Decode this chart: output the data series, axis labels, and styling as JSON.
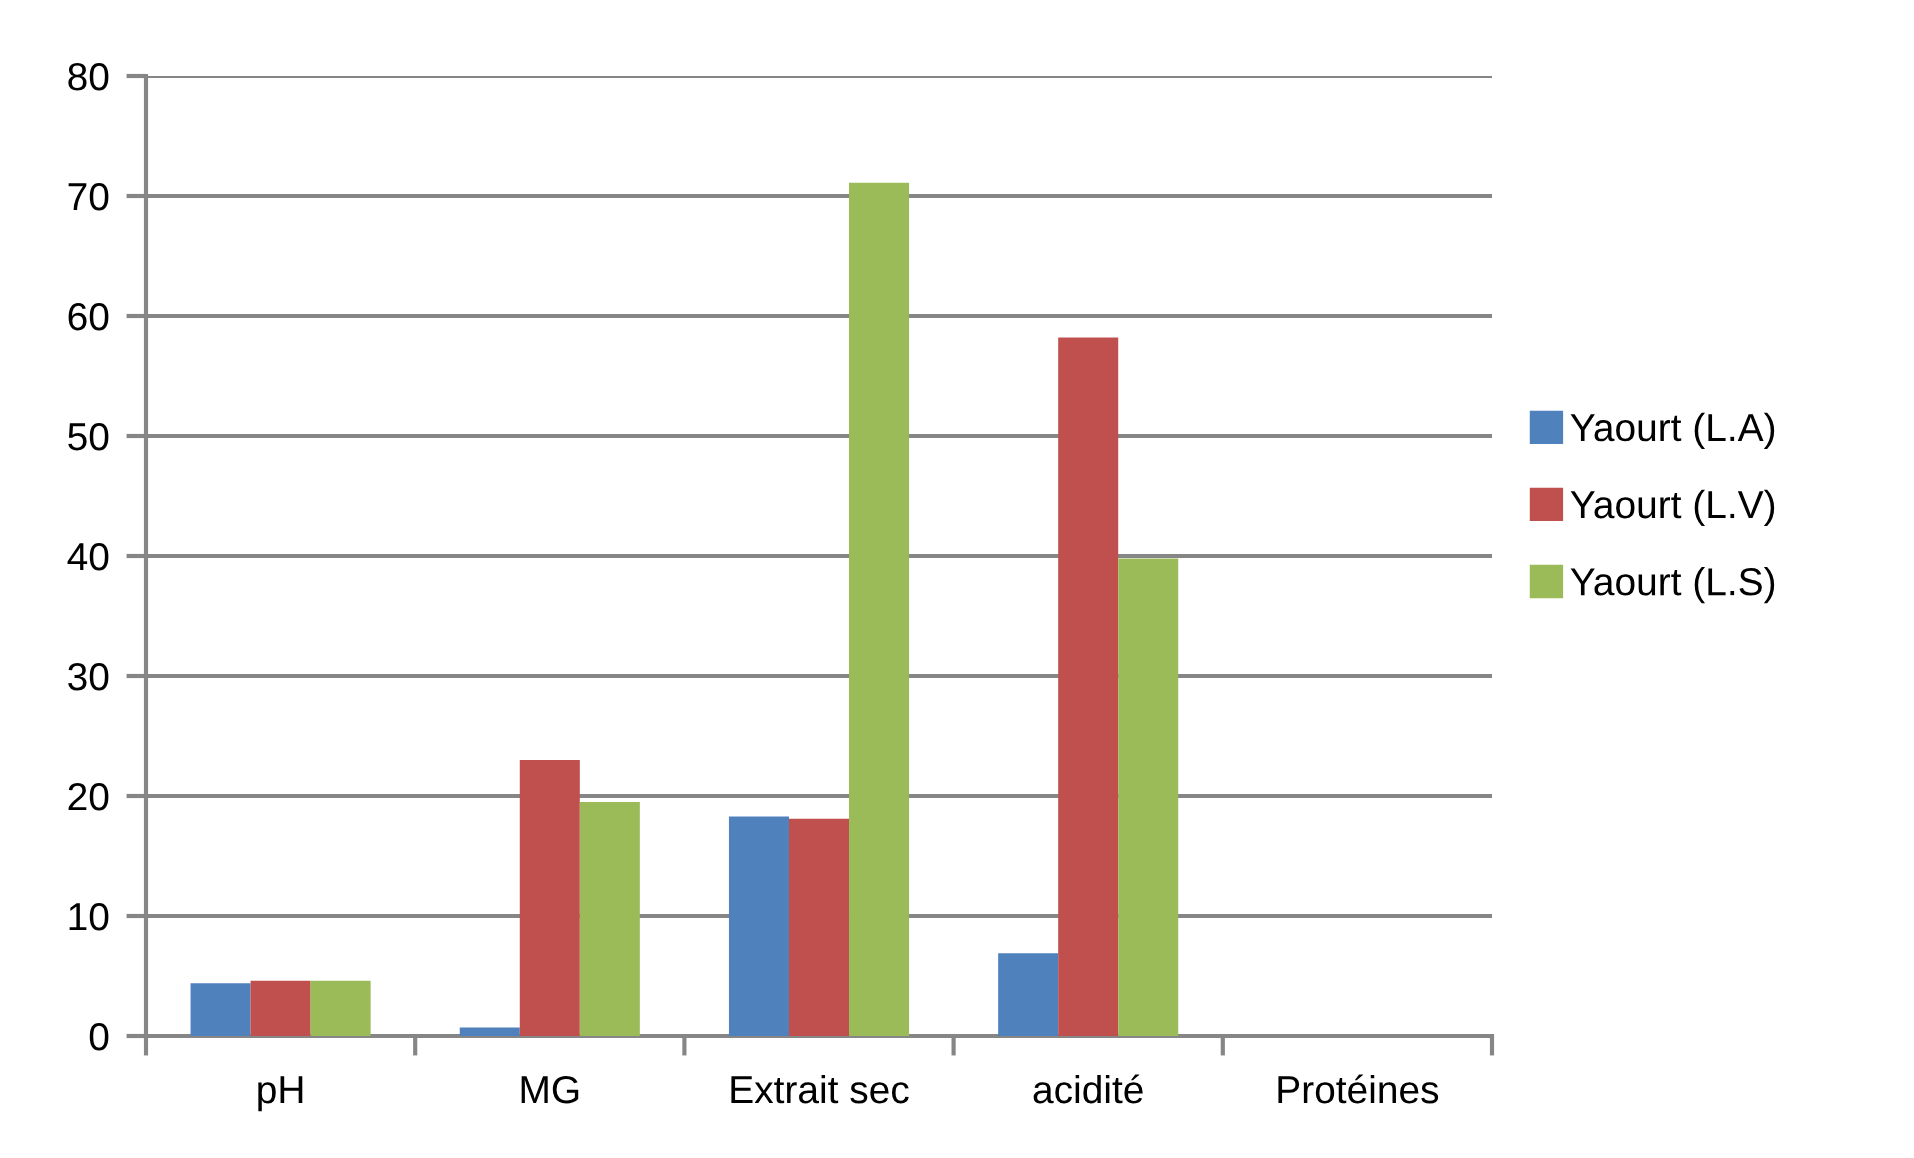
{
  "chart_data": {
    "type": "bar",
    "categories": [
      "pH",
      "MG",
      "Extrait sec",
      "acidité",
      "Protéines"
    ],
    "series": [
      {
        "name": "Yaourt (L.A)",
        "color": "#4f81bd",
        "values": [
          4.4,
          0.7,
          18.3,
          6.9,
          null
        ]
      },
      {
        "name": "Yaourt (L.V)",
        "color": "#c0504d",
        "values": [
          4.6,
          23.0,
          18.1,
          58.2,
          null
        ]
      },
      {
        "name": "Yaourt (L.S)",
        "color": "#9bbb59",
        "values": [
          4.6,
          19.5,
          71.1,
          39.8,
          null
        ]
      }
    ],
    "ylim": [
      0,
      80
    ],
    "yticks": [
      0,
      10,
      20,
      30,
      40,
      50,
      60,
      70,
      80
    ],
    "grid": "y",
    "legend": "right"
  }
}
